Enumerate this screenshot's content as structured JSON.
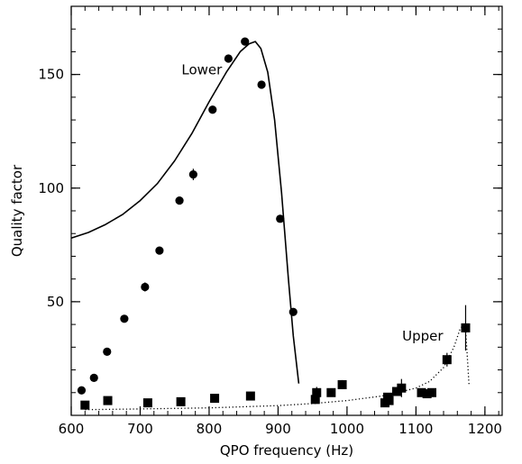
{
  "chart_data": {
    "type": "scatter",
    "xlabel": "QPO frequency (Hz)",
    "ylabel": "Quality factor",
    "xlim": [
      600,
      1225
    ],
    "ylim": [
      0,
      180
    ],
    "x_ticks": [
      600,
      700,
      800,
      900,
      1000,
      1100,
      1200
    ],
    "y_ticks": [
      50,
      100,
      150
    ],
    "x_minor_step": 20,
    "y_minor_step": 10,
    "grid": false,
    "series": [
      {
        "name": "Lower",
        "marker": "circle",
        "points": [
          {
            "x": 615,
            "y": 11,
            "err": 1.5
          },
          {
            "x": 633,
            "y": 16.5,
            "err": 1
          },
          {
            "x": 652,
            "y": 28,
            "err": 1
          },
          {
            "x": 677,
            "y": 42.5,
            "err": 1
          },
          {
            "x": 707,
            "y": 56.5,
            "err": 2
          },
          {
            "x": 728,
            "y": 72.5,
            "err": 1.5
          },
          {
            "x": 757,
            "y": 94.5,
            "err": 1.5
          },
          {
            "x": 777,
            "y": 106,
            "err": 2.5
          },
          {
            "x": 805,
            "y": 134.5,
            "err": 1.5
          },
          {
            "x": 828,
            "y": 157,
            "err": 1.5
          },
          {
            "x": 852,
            "y": 164.5,
            "err": 1.5
          },
          {
            "x": 876,
            "y": 145.5,
            "err": 1.5
          },
          {
            "x": 903,
            "y": 86.5,
            "err": 1.5
          },
          {
            "x": 922,
            "y": 45.5,
            "err": 1.5
          }
        ]
      },
      {
        "name": "Upper",
        "marker": "square",
        "points": [
          {
            "x": 620,
            "y": 4.5,
            "err": 0
          },
          {
            "x": 653,
            "y": 6.5,
            "err": 0
          },
          {
            "x": 711,
            "y": 5.5,
            "err": 0
          },
          {
            "x": 759,
            "y": 6,
            "err": 0
          },
          {
            "x": 808,
            "y": 7.5,
            "err": 0
          },
          {
            "x": 860,
            "y": 8.5,
            "err": 0
          },
          {
            "x": 954,
            "y": 7,
            "err": 2
          },
          {
            "x": 956,
            "y": 10,
            "err": 2.5
          },
          {
            "x": 977,
            "y": 10,
            "err": 1.5
          },
          {
            "x": 993,
            "y": 13.5,
            "err": 2
          },
          {
            "x": 1055,
            "y": 5.5,
            "err": 1.5
          },
          {
            "x": 1059,
            "y": 8,
            "err": 1.5
          },
          {
            "x": 1061,
            "y": 6.5,
            "err": 1.5
          },
          {
            "x": 1072,
            "y": 10.5,
            "err": 1.5
          },
          {
            "x": 1079,
            "y": 12,
            "err": 4
          },
          {
            "x": 1108,
            "y": 10,
            "err": 1.5
          },
          {
            "x": 1116,
            "y": 9.5,
            "err": 1.5
          },
          {
            "x": 1123,
            "y": 10,
            "err": 1.5
          },
          {
            "x": 1145,
            "y": 24.5,
            "err": 3
          },
          {
            "x": 1172,
            "y": 38.5,
            "err": 10
          }
        ]
      }
    ],
    "curves": [
      {
        "name": "Lower",
        "style": "solid",
        "points": [
          [
            600,
            78
          ],
          [
            625,
            80.5
          ],
          [
            650,
            84
          ],
          [
            675,
            88.5
          ],
          [
            700,
            94.5
          ],
          [
            725,
            102
          ],
          [
            750,
            112
          ],
          [
            775,
            124
          ],
          [
            800,
            138
          ],
          [
            825,
            151
          ],
          [
            845,
            160
          ],
          [
            858,
            163.5
          ],
          [
            867,
            164.5
          ],
          [
            875,
            161.5
          ],
          [
            885,
            151
          ],
          [
            895,
            130
          ],
          [
            905,
            98
          ],
          [
            915,
            60
          ],
          [
            922,
            35
          ],
          [
            930,
            14
          ]
        ]
      },
      {
        "name": "Upper",
        "style": "dotted",
        "points": [
          [
            620,
            2.5
          ],
          [
            700,
            2.8
          ],
          [
            800,
            3.3
          ],
          [
            900,
            4.3
          ],
          [
            950,
            5.2
          ],
          [
            1000,
            6.5
          ],
          [
            1050,
            8.5
          ],
          [
            1080,
            10.5
          ],
          [
            1100,
            12
          ],
          [
            1120,
            15
          ],
          [
            1140,
            21
          ],
          [
            1155,
            30
          ],
          [
            1164,
            38
          ],
          [
            1170,
            40.5
          ],
          [
            1172,
            37
          ],
          [
            1174,
            28
          ],
          [
            1177,
            13
          ]
        ]
      }
    ],
    "annotations": [
      {
        "text": "Lower",
        "x": 760,
        "y": 150
      },
      {
        "text": "Upper",
        "x": 1080,
        "y": 33
      }
    ]
  }
}
